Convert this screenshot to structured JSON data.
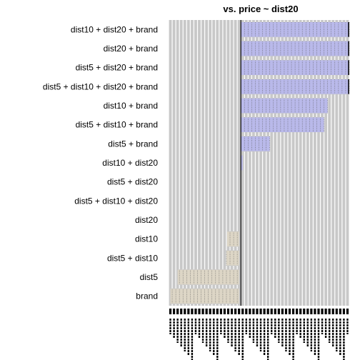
{
  "chart_data": {
    "type": "heatmap",
    "title": "vs. price ~ dist20",
    "xlabel": "",
    "ylabel": "",
    "rows": [
      "dist10 + dist20 + brand",
      "dist20 + brand",
      "dist5 + dist20 + brand",
      "dist5 + dist10 + dist20 + brand",
      "dist10 + brand",
      "dist5 + dist10 + brand",
      "dist5 + brand",
      "dist10 + dist20",
      "dist5 + dist20",
      "dist5 + dist10 + dist20",
      "dist20",
      "dist10",
      "dist5 + dist10",
      "dist5",
      "brand"
    ],
    "n_columns": 50,
    "reference_column": 20,
    "row_intervals": [
      {
        "row": "dist10 + dist20 + brand",
        "start": 20,
        "end": 50,
        "sign": "positive"
      },
      {
        "row": "dist20 + brand",
        "start": 20,
        "end": 50,
        "sign": "positive"
      },
      {
        "row": "dist5 + dist20 + brand",
        "start": 20,
        "end": 50,
        "sign": "positive"
      },
      {
        "row": "dist5 + dist10 + dist20 + brand",
        "start": 20,
        "end": 50,
        "sign": "positive"
      },
      {
        "row": "dist10 + brand",
        "start": 20,
        "end": 44,
        "sign": "positive"
      },
      {
        "row": "dist5 + dist10 + brand",
        "start": 20,
        "end": 43,
        "sign": "positive"
      },
      {
        "row": "dist5 + brand",
        "start": 20,
        "end": 28,
        "sign": "positive"
      },
      {
        "row": "dist10 + dist20",
        "start": 20,
        "end": 20.5,
        "sign": "positive"
      },
      {
        "row": "dist10",
        "start": 16.2,
        "end": 19.5,
        "sign": "negative"
      },
      {
        "row": "dist5 + dist10",
        "start": 16,
        "end": 19.5,
        "sign": "negative"
      },
      {
        "row": "dist5",
        "start": 2.5,
        "end": 19.5,
        "sign": "negative"
      },
      {
        "row": "brand",
        "start": 0.5,
        "end": 19.5,
        "sign": "negative"
      }
    ],
    "colors": {
      "background_cell": "#c8c8c8",
      "positive": "#b9b9ea",
      "negative": "#ddd6c6",
      "reference_line": "#000000"
    }
  }
}
